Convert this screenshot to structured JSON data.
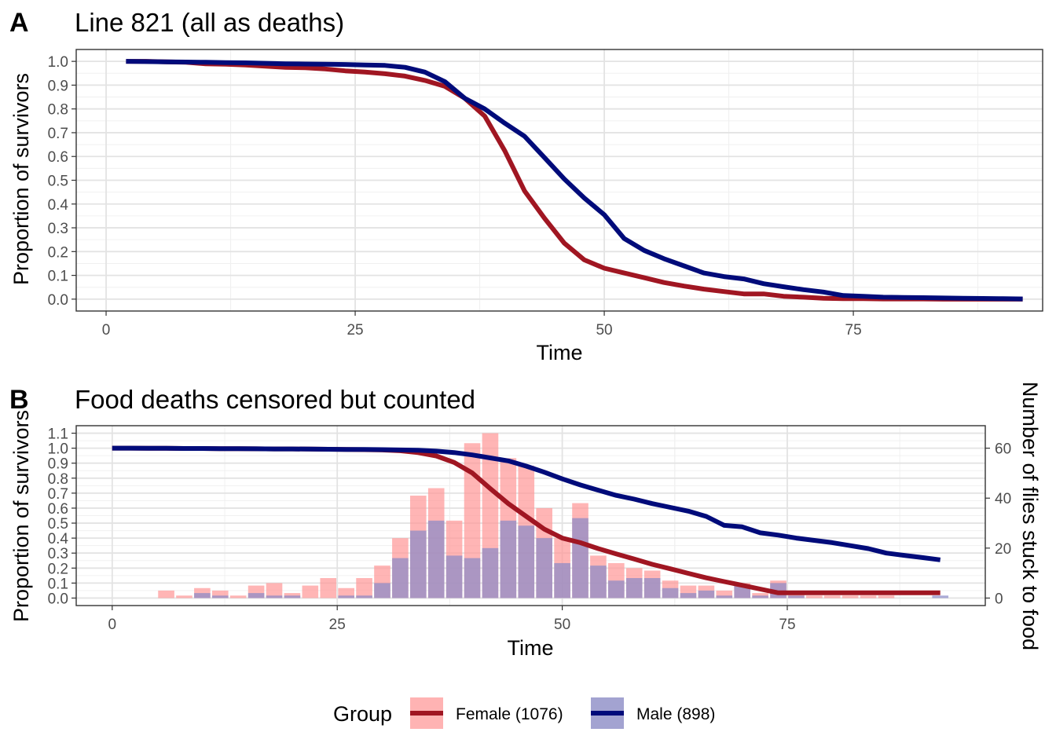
{
  "chart_data": [
    {
      "panel_tag": "A",
      "type": "line",
      "title": "Line 821 (all as deaths)",
      "xlabel": "Time",
      "ylabel": "Proportion of survivors",
      "xlim": [
        -3,
        94
      ],
      "ylim": [
        -0.05,
        1.05
      ],
      "xticks": [
        0,
        25,
        50,
        75
      ],
      "yticks": [
        0.0,
        0.1,
        0.2,
        0.3,
        0.4,
        0.5,
        0.6,
        0.7,
        0.8,
        0.9,
        1.0
      ],
      "grid": true,
      "series": [
        {
          "name": "Female (1076)",
          "color": "#a01622",
          "x": [
            2,
            4,
            6,
            8,
            10,
            12,
            14,
            16,
            18,
            20,
            22,
            24,
            26,
            28,
            30,
            32,
            34,
            36,
            38,
            40,
            42,
            44,
            46,
            48,
            50,
            52,
            54,
            56,
            58,
            60,
            62,
            64,
            66,
            68,
            70,
            72,
            74,
            76,
            78,
            80,
            82,
            84,
            86,
            88,
            90,
            92
          ],
          "y": [
            1.0,
            1.0,
            0.998,
            0.996,
            0.99,
            0.988,
            0.985,
            0.98,
            0.975,
            0.973,
            0.968,
            0.96,
            0.955,
            0.948,
            0.938,
            0.92,
            0.895,
            0.845,
            0.77,
            0.625,
            0.455,
            0.34,
            0.235,
            0.165,
            0.13,
            0.11,
            0.09,
            0.07,
            0.055,
            0.042,
            0.032,
            0.022,
            0.022,
            0.012,
            0.008,
            0.004,
            0.002,
            0.002,
            0.001,
            0.001,
            0.001,
            0.0,
            0.0,
            0.0,
            0.0,
            0.0
          ]
        },
        {
          "name": "Male (898)",
          "color": "#000b7a",
          "x": [
            2,
            4,
            6,
            8,
            10,
            12,
            14,
            16,
            18,
            20,
            22,
            24,
            26,
            28,
            30,
            32,
            34,
            36,
            38,
            40,
            42,
            44,
            46,
            48,
            50,
            52,
            54,
            56,
            58,
            60,
            62,
            64,
            66,
            68,
            70,
            72,
            74,
            76,
            78,
            80,
            82,
            84,
            86,
            88,
            90,
            92
          ],
          "y": [
            1.0,
            0.999,
            0.998,
            0.997,
            0.996,
            0.995,
            0.994,
            0.992,
            0.99,
            0.989,
            0.988,
            0.987,
            0.985,
            0.983,
            0.975,
            0.955,
            0.915,
            0.845,
            0.8,
            0.74,
            0.685,
            0.595,
            0.505,
            0.425,
            0.355,
            0.255,
            0.205,
            0.17,
            0.14,
            0.11,
            0.095,
            0.085,
            0.065,
            0.052,
            0.04,
            0.03,
            0.015,
            0.012,
            0.008,
            0.007,
            0.006,
            0.005,
            0.004,
            0.003,
            0.002,
            0.001
          ]
        }
      ]
    },
    {
      "panel_tag": "B",
      "type": "line+bar",
      "title": "Food deaths censored but counted",
      "xlabel": "Time",
      "ylabel": "Proportion of survivors",
      "ylabel_right": "Number of flies stuck to food",
      "xlim": [
        -4,
        97
      ],
      "ylim": [
        -0.05,
        1.15
      ],
      "ylim_right": [
        -3,
        69
      ],
      "xticks": [
        0,
        25,
        50,
        75
      ],
      "yticks": [
        0.0,
        0.1,
        0.2,
        0.3,
        0.4,
        0.5,
        0.6,
        0.7,
        0.8,
        0.9,
        1.0,
        1.1
      ],
      "yticks_right": [
        0,
        20,
        40,
        60
      ],
      "grid": true,
      "bars": {
        "x": [
          4,
          6,
          8,
          10,
          12,
          14,
          16,
          18,
          20,
          22,
          24,
          26,
          28,
          30,
          32,
          34,
          36,
          38,
          40,
          42,
          44,
          46,
          48,
          50,
          52,
          54,
          56,
          58,
          60,
          62,
          64,
          66,
          68,
          70,
          72,
          74,
          76,
          78,
          80,
          82,
          84,
          86,
          88,
          90,
          92
        ],
        "female": [
          0,
          3,
          1,
          4,
          3,
          1,
          5,
          6,
          2,
          5,
          8,
          4,
          8,
          13,
          24,
          41,
          44,
          31,
          62,
          66,
          56,
          53,
          36,
          24,
          38,
          17,
          14,
          12,
          11,
          7,
          5,
          5,
          3,
          6,
          2,
          7,
          2,
          1,
          1,
          1,
          1,
          1,
          0,
          0,
          0
        ],
        "male": [
          0,
          0,
          0,
          2,
          1,
          0,
          2,
          1,
          1,
          0,
          0,
          1,
          1,
          6,
          16,
          27,
          31,
          17,
          16,
          20,
          31,
          29,
          24,
          14,
          32,
          13,
          7,
          8,
          8,
          4,
          2,
          3,
          1,
          5,
          1,
          6,
          1,
          0,
          0,
          0,
          0,
          0,
          0,
          0,
          1
        ],
        "female_color": "#ff9999",
        "male_color": "#8a8ac8"
      },
      "series": [
        {
          "name": "Female (1076)",
          "color": "#a01622",
          "x": [
            0,
            2,
            4,
            6,
            8,
            10,
            12,
            14,
            16,
            18,
            20,
            22,
            24,
            26,
            28,
            30,
            32,
            34,
            36,
            38,
            40,
            42,
            44,
            46,
            48,
            50,
            52,
            54,
            56,
            58,
            60,
            62,
            64,
            66,
            68,
            70,
            72,
            74,
            76,
            78,
            80,
            82,
            84,
            86,
            88,
            90,
            92
          ],
          "y": [
            1.0,
            1.0,
            0.999,
            0.999,
            0.998,
            0.998,
            0.997,
            0.997,
            0.996,
            0.995,
            0.995,
            0.994,
            0.993,
            0.992,
            0.99,
            0.988,
            0.983,
            0.97,
            0.948,
            0.905,
            0.835,
            0.73,
            0.63,
            0.545,
            0.46,
            0.4,
            0.37,
            0.33,
            0.295,
            0.26,
            0.225,
            0.195,
            0.165,
            0.135,
            0.11,
            0.085,
            0.06,
            0.035,
            0.035,
            0.035,
            0.035,
            0.035,
            0.035,
            0.035,
            0.035,
            0.035,
            0.035
          ]
        },
        {
          "name": "Male (898)",
          "color": "#000b7a",
          "x": [
            0,
            2,
            4,
            6,
            8,
            10,
            12,
            14,
            16,
            18,
            20,
            22,
            24,
            26,
            28,
            30,
            32,
            34,
            36,
            38,
            40,
            42,
            44,
            46,
            48,
            50,
            52,
            54,
            56,
            58,
            60,
            62,
            64,
            66,
            68,
            70,
            72,
            74,
            76,
            78,
            80,
            82,
            84,
            86,
            88,
            90,
            92
          ],
          "y": [
            1.0,
            1.0,
            0.999,
            0.999,
            0.998,
            0.998,
            0.997,
            0.997,
            0.996,
            0.995,
            0.995,
            0.994,
            0.993,
            0.992,
            0.991,
            0.99,
            0.988,
            0.986,
            0.98,
            0.971,
            0.955,
            0.935,
            0.915,
            0.88,
            0.84,
            0.795,
            0.755,
            0.72,
            0.685,
            0.66,
            0.63,
            0.605,
            0.58,
            0.545,
            0.485,
            0.475,
            0.435,
            0.42,
            0.4,
            0.385,
            0.37,
            0.35,
            0.33,
            0.3,
            0.285,
            0.27,
            0.255
          ]
        }
      ]
    }
  ],
  "legend": {
    "title": "Group",
    "items": [
      {
        "label": "Female (1076)",
        "line_color": "#a01622",
        "fill_color": "#ffb3b3"
      },
      {
        "label": "Male (898)",
        "line_color": "#000b7a",
        "fill_color": "#a3a3d1"
      }
    ]
  }
}
